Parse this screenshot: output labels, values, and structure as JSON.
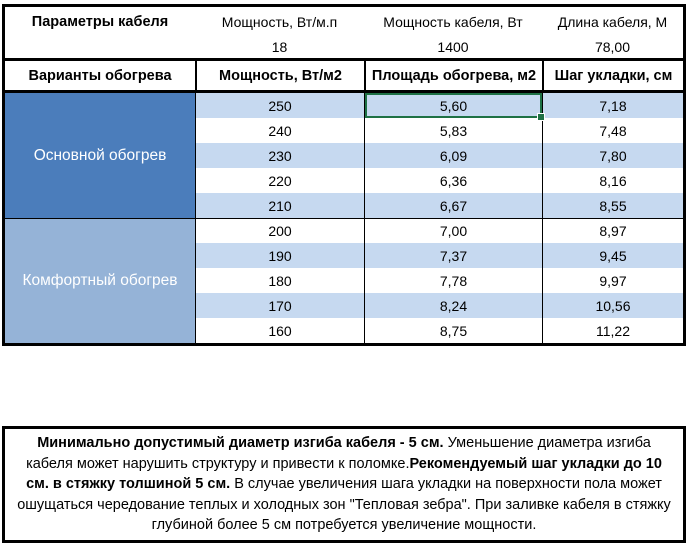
{
  "top_table": {
    "corner_label": "Параметры кабеля",
    "headers": [
      "Мощность, Вт/м.п",
      "Мощность кабеля, Вт",
      "Длина кабеля, М"
    ],
    "values": [
      "18",
      "1400",
      "78,00"
    ]
  },
  "main_table": {
    "headers": [
      "Варианты обогрева",
      "Мощность, Вт/м2",
      "Площадь обогрева, м2",
      "Шаг укладки, см"
    ],
    "sections": [
      {
        "label": "Основной обогрев",
        "rows": [
          [
            "250",
            "5,60",
            "7,18"
          ],
          [
            "240",
            "5,83",
            "7,48"
          ],
          [
            "230",
            "6,09",
            "7,80"
          ],
          [
            "220",
            "6,36",
            "8,16"
          ],
          [
            "210",
            "6,67",
            "8,55"
          ]
        ]
      },
      {
        "label": "Комфортный обогрев",
        "rows": [
          [
            "200",
            "7,00",
            "8,97"
          ],
          [
            "190",
            "7,37",
            "9,45"
          ],
          [
            "180",
            "7,78",
            "9,97"
          ],
          [
            "170",
            "8,24",
            "10,56"
          ],
          [
            "160",
            "8,75",
            "11,22"
          ]
        ]
      }
    ]
  },
  "selected_cell": {
    "section": 0,
    "row": 0,
    "col": 1,
    "value": "5,60"
  },
  "note": {
    "segments": [
      {
        "text": "Минимально допустимый диаметр изгиба кабеля - 5 см.",
        "bold": true
      },
      {
        "text": "  Уменьшение диаметра изгиба кабеля может нарушить структуру и привести к поломке.",
        "bold": false
      },
      {
        "text": "Рекомендуемый шаг укладки до 10 см. в стяжку толшиной 5 см.",
        "bold": true
      },
      {
        "text": " В  случае увеличения шага укладки на поверхности пола может ошущаться чередование теплых и холодных зон \"Тепловая зебра\". При заливке кабеля в стяжку глубиной более 5 см потребуется увеличение мощности.",
        "bold": false
      }
    ]
  },
  "colors": {
    "primary_section": "#4b7dbb",
    "comfort_section": "#95b3d7",
    "band_row": "#c6d9f0",
    "selection_green": "#1e7145",
    "border": "#000000"
  }
}
